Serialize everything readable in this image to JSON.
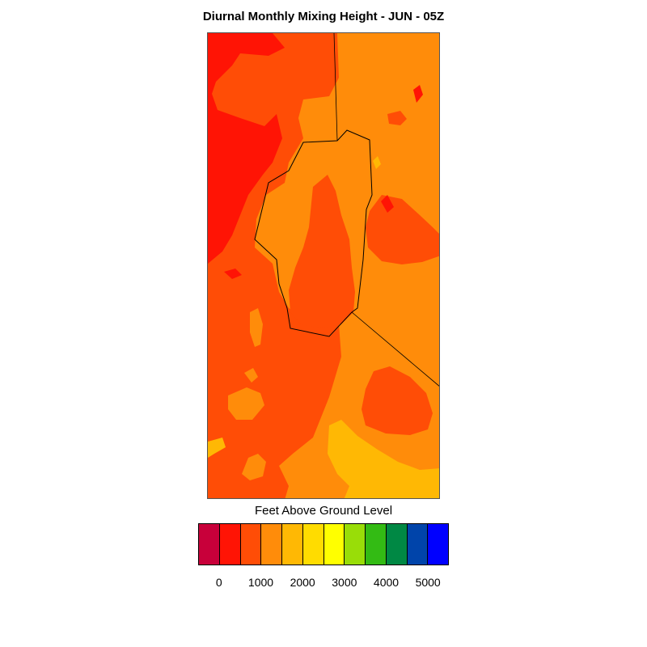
{
  "title": "Diurnal Monthly Mixing Height - JUN - 05Z",
  "colorbar": {
    "label": "Feet Above Ground Level",
    "colors": [
      "#c8003a",
      "#ff1405",
      "#ff4d06",
      "#ff8c0a",
      "#ffb804",
      "#ffdc00",
      "#ffff00",
      "#99dd08",
      "#33bb14",
      "#008844",
      "#0044aa",
      "#0000ff"
    ],
    "tick_labels": [
      "0",
      "1000",
      "2000",
      "3000",
      "4000",
      "5000"
    ]
  },
  "map": {
    "fill_classes": {
      "base": "#ff8c0a",
      "low": "#ff1405",
      "mid": "#ff4d06",
      "high": "#ffb804",
      "boundary": "#000000"
    }
  }
}
